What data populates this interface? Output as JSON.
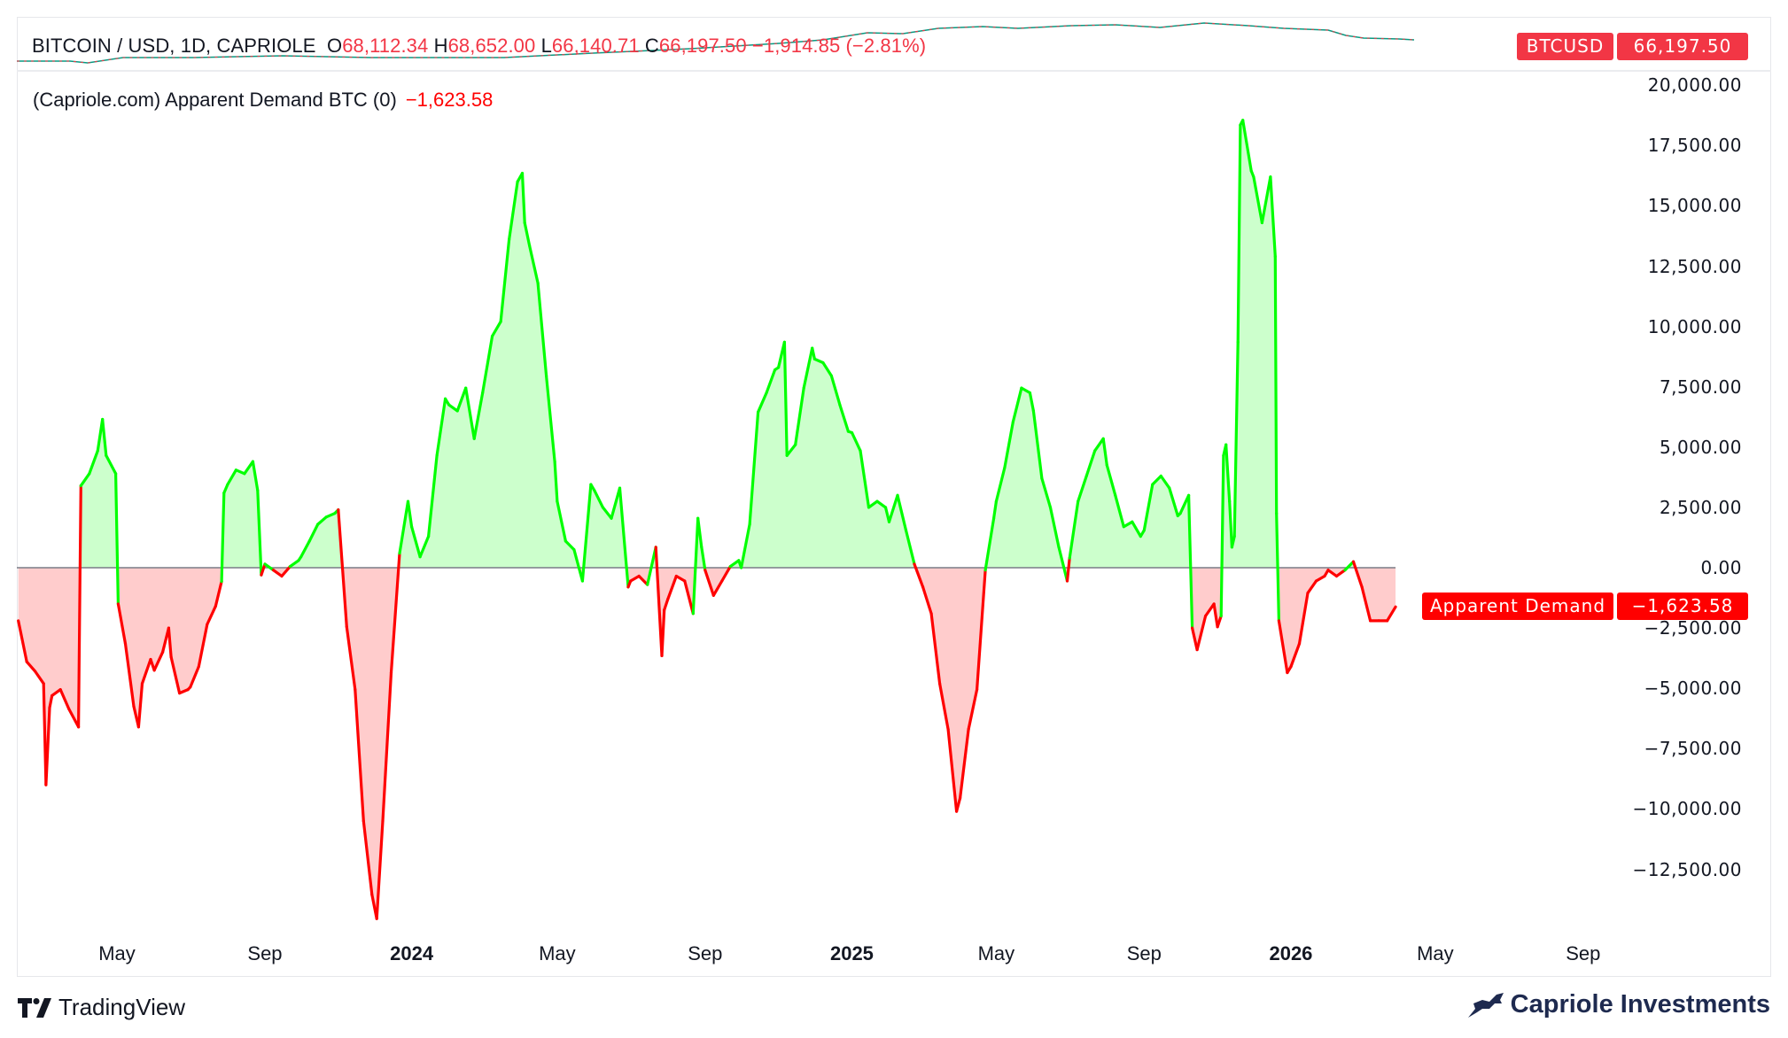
{
  "header": {
    "symbol": "BITCOIN / USD, 1D, CAPRIOLE",
    "open_label": "O",
    "open": "68,112.34",
    "high_label": "H",
    "high": "68,652.00",
    "low_label": "L",
    "low": "66,140.71",
    "close_label": "C",
    "close": "66,197.50",
    "change": "−1,914.85 (−2.81%)",
    "price_badge_label": "BTCUSD",
    "price_badge_value": "66,197.50"
  },
  "indicator": {
    "title": "(Capriole.com) Apparent Demand BTC (0)",
    "value": "−1,623.58",
    "badge_label": "Apparent Demand",
    "badge_value": "−1,623.58"
  },
  "footer": {
    "platform": "TradingView",
    "brand": "Capriole Investments"
  },
  "colors": {
    "positive_line": "#00ff00",
    "negative_line": "#ff0000",
    "positive_fill": "#ccffcc",
    "negative_fill": "#ffcccc",
    "price_badge": "#f23645",
    "indicator_badge": "#ff0000",
    "zero_line": "#787b86"
  },
  "chart_data": {
    "type": "area",
    "title": "(Capriole.com) Apparent Demand BTC (0)",
    "ylim": [
      -15000,
      20000
    ],
    "y_ticks": [
      "20,000.00",
      "17,500.00",
      "15,000.00",
      "12,500.00",
      "10,000.00",
      "7,500.00",
      "5,000.00",
      "2,500.00",
      "0.00",
      "−2,500.00",
      "−5,000.00",
      "−7,500.00",
      "−10,000.00",
      "−12,500.00"
    ],
    "y_tick_values": [
      20000,
      17500,
      15000,
      12500,
      10000,
      7500,
      5000,
      2500,
      0,
      -2500,
      -5000,
      -7500,
      -10000,
      -12500
    ],
    "x_ticks": [
      {
        "label": "May",
        "date": "2023-05-01",
        "year": false
      },
      {
        "label": "Sep",
        "date": "2023-09-01",
        "year": false
      },
      {
        "label": "2024",
        "date": "2024-01-01",
        "year": true
      },
      {
        "label": "May",
        "date": "2024-05-01",
        "year": false
      },
      {
        "label": "Sep",
        "date": "2024-09-01",
        "year": false
      },
      {
        "label": "2025",
        "date": "2025-01-01",
        "year": true
      },
      {
        "label": "May",
        "date": "2025-05-01",
        "year": false
      },
      {
        "label": "Sep",
        "date": "2025-09-01",
        "year": false
      },
      {
        "label": "2026",
        "date": "2026-01-01",
        "year": true
      },
      {
        "label": "May",
        "date": "2026-05-01",
        "year": false
      },
      {
        "label": "Sep",
        "date": "2026-09-01",
        "year": false
      }
    ],
    "baseline": 0,
    "grid": false,
    "legend": "none",
    "series": [
      {
        "points": [
          [
            "2023-02-08",
            -2200
          ],
          [
            "2023-02-15",
            -3900
          ],
          [
            "2023-02-22",
            -4300
          ],
          [
            "2023-03-01",
            -4800
          ],
          [
            "2023-03-03",
            -9000
          ],
          [
            "2023-03-06",
            -5800
          ],
          [
            "2023-03-08",
            -5300
          ],
          [
            "2023-03-15",
            -5050
          ],
          [
            "2023-03-22",
            -5850
          ],
          [
            "2023-03-30",
            -6600
          ],
          [
            "2023-04-01",
            3400
          ],
          [
            "2023-04-08",
            3900
          ],
          [
            "2023-04-15",
            4850
          ],
          [
            "2023-04-19",
            6150
          ],
          [
            "2023-04-22",
            4650
          ],
          [
            "2023-04-30",
            3900
          ],
          [
            "2023-05-02",
            -1500
          ],
          [
            "2023-05-08",
            -3150
          ],
          [
            "2023-05-15",
            -5750
          ],
          [
            "2023-05-19",
            -6600
          ],
          [
            "2023-05-22",
            -4800
          ],
          [
            "2023-05-29",
            -3800
          ],
          [
            "2023-06-01",
            -4250
          ],
          [
            "2023-06-08",
            -3500
          ],
          [
            "2023-06-13",
            -2500
          ],
          [
            "2023-06-15",
            -3700
          ],
          [
            "2023-06-22",
            -5200
          ],
          [
            "2023-06-29",
            -5050
          ],
          [
            "2023-07-01",
            -4950
          ],
          [
            "2023-07-08",
            -4100
          ],
          [
            "2023-07-15",
            -2350
          ],
          [
            "2023-07-22",
            -1600
          ],
          [
            "2023-07-27",
            -570
          ],
          [
            "2023-07-29",
            3100
          ],
          [
            "2023-08-01",
            3450
          ],
          [
            "2023-08-08",
            4050
          ],
          [
            "2023-08-15",
            3900
          ],
          [
            "2023-08-22",
            4400
          ],
          [
            "2023-08-26",
            3200
          ],
          [
            "2023-08-29",
            -300
          ],
          [
            "2023-09-01",
            150
          ],
          [
            "2023-09-08",
            -100
          ],
          [
            "2023-09-15",
            -350
          ],
          [
            "2023-09-22",
            50
          ],
          [
            "2023-09-29",
            300
          ],
          [
            "2023-10-01",
            450
          ],
          [
            "2023-10-08",
            1100
          ],
          [
            "2023-10-15",
            1800
          ],
          [
            "2023-10-22",
            2100
          ],
          [
            "2023-10-29",
            2250
          ],
          [
            "2023-11-01",
            2400
          ],
          [
            "2023-11-08",
            -2450
          ],
          [
            "2023-11-15",
            -5050
          ],
          [
            "2023-11-22",
            -10500
          ],
          [
            "2023-11-29",
            -13550
          ],
          [
            "2023-12-03",
            -14550
          ],
          [
            "2023-12-08",
            -10500
          ],
          [
            "2023-12-15",
            -4350
          ],
          [
            "2023-12-22",
            600
          ],
          [
            "2023-12-29",
            2750
          ],
          [
            "2024-01-01",
            1700
          ],
          [
            "2024-01-08",
            450
          ],
          [
            "2024-01-15",
            1300
          ],
          [
            "2024-01-22",
            4650
          ],
          [
            "2024-01-29",
            7000
          ],
          [
            "2024-02-01",
            6750
          ],
          [
            "2024-02-08",
            6500
          ],
          [
            "2024-02-15",
            7450
          ],
          [
            "2024-02-22",
            5350
          ],
          [
            "2024-02-29",
            7250
          ],
          [
            "2024-03-08",
            9600
          ],
          [
            "2024-03-15",
            10200
          ],
          [
            "2024-03-22",
            13600
          ],
          [
            "2024-03-29",
            16000
          ],
          [
            "2024-04-02",
            16350
          ],
          [
            "2024-04-04",
            14300
          ],
          [
            "2024-04-08",
            13350
          ],
          [
            "2024-04-15",
            11800
          ],
          [
            "2024-04-22",
            7950
          ],
          [
            "2024-04-29",
            4400
          ],
          [
            "2024-05-01",
            2750
          ],
          [
            "2024-05-08",
            1100
          ],
          [
            "2024-05-15",
            750
          ],
          [
            "2024-05-22",
            -550
          ],
          [
            "2024-05-29",
            3450
          ],
          [
            "2024-06-01",
            3200
          ],
          [
            "2024-06-08",
            2500
          ],
          [
            "2024-06-15",
            2050
          ],
          [
            "2024-06-22",
            3300
          ],
          [
            "2024-06-29",
            -800
          ],
          [
            "2024-07-01",
            -550
          ],
          [
            "2024-07-08",
            -350
          ],
          [
            "2024-07-15",
            -700
          ],
          [
            "2024-07-22",
            850
          ],
          [
            "2024-07-27",
            -3650
          ],
          [
            "2024-07-29",
            -1750
          ],
          [
            "2024-08-01",
            -1300
          ],
          [
            "2024-08-08",
            -350
          ],
          [
            "2024-08-15",
            -550
          ],
          [
            "2024-08-22",
            -1900
          ],
          [
            "2024-08-26",
            2050
          ],
          [
            "2024-08-29",
            850
          ],
          [
            "2024-09-01",
            -100
          ],
          [
            "2024-09-08",
            -1150
          ],
          [
            "2024-09-15",
            -550
          ],
          [
            "2024-09-22",
            50
          ],
          [
            "2024-09-29",
            300
          ],
          [
            "2024-10-01",
            0
          ],
          [
            "2024-10-08",
            1800
          ],
          [
            "2024-10-15",
            6450
          ],
          [
            "2024-10-22",
            7250
          ],
          [
            "2024-10-29",
            8200
          ],
          [
            "2024-11-01",
            8300
          ],
          [
            "2024-11-06",
            9350
          ],
          [
            "2024-11-08",
            4650
          ],
          [
            "2024-11-15",
            5100
          ],
          [
            "2024-11-22",
            7450
          ],
          [
            "2024-11-29",
            9100
          ],
          [
            "2024-12-01",
            8650
          ],
          [
            "2024-12-08",
            8500
          ],
          [
            "2024-12-15",
            7950
          ],
          [
            "2024-12-22",
            6750
          ],
          [
            "2024-12-29",
            5650
          ],
          [
            "2025-01-01",
            5600
          ],
          [
            "2025-01-08",
            4850
          ],
          [
            "2025-01-15",
            2500
          ],
          [
            "2025-01-22",
            2750
          ],
          [
            "2025-01-29",
            2500
          ],
          [
            "2025-02-01",
            1900
          ],
          [
            "2025-02-08",
            3000
          ],
          [
            "2025-02-15",
            1550
          ],
          [
            "2025-02-22",
            150
          ],
          [
            "2025-03-01",
            -800
          ],
          [
            "2025-03-08",
            -1900
          ],
          [
            "2025-03-15",
            -4800
          ],
          [
            "2025-03-22",
            -6700
          ],
          [
            "2025-03-29",
            -10100
          ],
          [
            "2025-04-01",
            -9550
          ],
          [
            "2025-04-08",
            -6700
          ],
          [
            "2025-04-15",
            -5050
          ],
          [
            "2025-04-22",
            -100
          ],
          [
            "2025-04-29",
            2050
          ],
          [
            "2025-05-01",
            2750
          ],
          [
            "2025-05-08",
            4150
          ],
          [
            "2025-05-15",
            6050
          ],
          [
            "2025-05-22",
            7450
          ],
          [
            "2025-05-29",
            7250
          ],
          [
            "2025-06-01",
            6500
          ],
          [
            "2025-06-08",
            3700
          ],
          [
            "2025-06-15",
            2500
          ],
          [
            "2025-06-22",
            850
          ],
          [
            "2025-06-29",
            -550
          ],
          [
            "2025-07-01",
            400
          ],
          [
            "2025-07-08",
            2750
          ],
          [
            "2025-07-15",
            3800
          ],
          [
            "2025-07-22",
            4850
          ],
          [
            "2025-07-29",
            5350
          ],
          [
            "2025-08-01",
            4250
          ],
          [
            "2025-08-08",
            3000
          ],
          [
            "2025-08-15",
            1700
          ],
          [
            "2025-08-22",
            1900
          ],
          [
            "2025-08-29",
            1300
          ],
          [
            "2025-09-01",
            1550
          ],
          [
            "2025-09-08",
            3450
          ],
          [
            "2025-09-15",
            3800
          ],
          [
            "2025-09-22",
            3300
          ],
          [
            "2025-09-29",
            2150
          ],
          [
            "2025-10-01",
            2250
          ],
          [
            "2025-10-08",
            3000
          ],
          [
            "2025-10-11",
            -2500
          ],
          [
            "2025-10-15",
            -3400
          ],
          [
            "2025-10-22",
            -2000
          ],
          [
            "2025-10-29",
            -1500
          ],
          [
            "2025-11-01",
            -2450
          ],
          [
            "2025-11-04",
            -2000
          ],
          [
            "2025-11-06",
            4650
          ],
          [
            "2025-11-08",
            5100
          ],
          [
            "2025-11-11",
            2750
          ],
          [
            "2025-11-13",
            850
          ],
          [
            "2025-11-15",
            1300
          ],
          [
            "2025-11-18",
            9350
          ],
          [
            "2025-11-20",
            18350
          ],
          [
            "2025-11-22",
            18550
          ],
          [
            "2025-11-29",
            16450
          ],
          [
            "2025-12-01",
            16200
          ],
          [
            "2025-12-08",
            14300
          ],
          [
            "2025-12-15",
            16200
          ],
          [
            "2025-12-19",
            12900
          ],
          [
            "2025-12-20",
            2250
          ],
          [
            "2025-12-22",
            -2200
          ],
          [
            "2025-12-29",
            -4350
          ],
          [
            "2026-01-01",
            -4100
          ],
          [
            "2026-01-08",
            -3150
          ],
          [
            "2026-01-15",
            -1050
          ],
          [
            "2026-01-22",
            -550
          ],
          [
            "2026-01-29",
            -350
          ],
          [
            "2026-02-01",
            -100
          ],
          [
            "2026-02-08",
            -350
          ],
          [
            "2026-02-15",
            -100
          ],
          [
            "2026-02-22",
            250
          ],
          [
            "2026-03-01",
            -800
          ],
          [
            "2026-03-08",
            -2200
          ],
          [
            "2026-03-15",
            -2200
          ],
          [
            "2026-03-22",
            -2200
          ],
          [
            "2026-03-29",
            -1623.58
          ]
        ]
      }
    ]
  }
}
